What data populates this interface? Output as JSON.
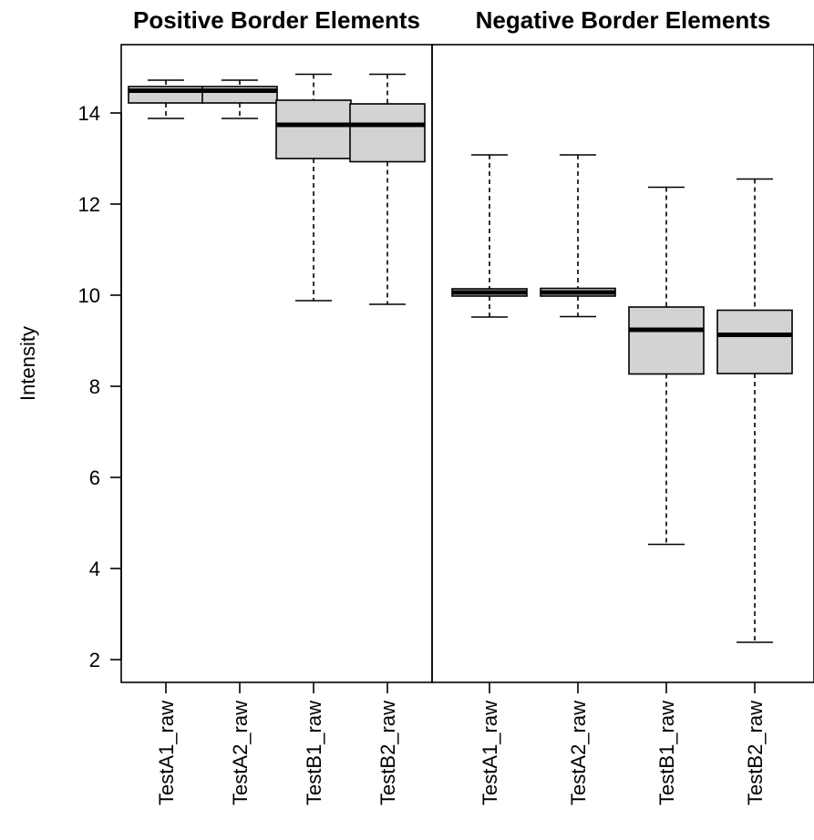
{
  "chart_data": {
    "type": "box",
    "ylabel": "Intensity",
    "ylim": [
      1.5,
      15.5
    ],
    "yticks": [
      2,
      4,
      6,
      8,
      10,
      12,
      14
    ],
    "grid": false,
    "colors": {
      "box_fill": "#d3d3d3",
      "line": "#000000"
    },
    "panels": [
      {
        "title": "Positive Border Elements",
        "categories": [
          "TestA1_raw",
          "TestA2_raw",
          "TestB1_raw",
          "TestB2_raw"
        ],
        "boxes": [
          {
            "min": 13.88,
            "q1": 14.22,
            "median": 14.49,
            "q3": 14.58,
            "max": 14.72
          },
          {
            "min": 13.88,
            "q1": 14.22,
            "median": 14.49,
            "q3": 14.58,
            "max": 14.72
          },
          {
            "min": 9.88,
            "q1": 13.0,
            "median": 13.74,
            "q3": 14.28,
            "max": 14.85
          },
          {
            "min": 9.8,
            "q1": 12.93,
            "median": 13.74,
            "q3": 14.2,
            "max": 14.85
          }
        ]
      },
      {
        "title": "Negative Border Elements",
        "categories": [
          "TestA1_raw",
          "TestA2_raw",
          "TestB1_raw",
          "TestB2_raw"
        ],
        "boxes": [
          {
            "min": 9.52,
            "q1": 9.98,
            "median": 10.06,
            "q3": 10.14,
            "max": 13.08
          },
          {
            "min": 9.53,
            "q1": 9.98,
            "median": 10.06,
            "q3": 10.15,
            "max": 13.08
          },
          {
            "min": 4.53,
            "q1": 8.27,
            "median": 9.24,
            "q3": 9.74,
            "max": 12.37
          },
          {
            "min": 2.38,
            "q1": 8.28,
            "median": 9.13,
            "q3": 9.67,
            "max": 12.55
          }
        ]
      }
    ]
  }
}
